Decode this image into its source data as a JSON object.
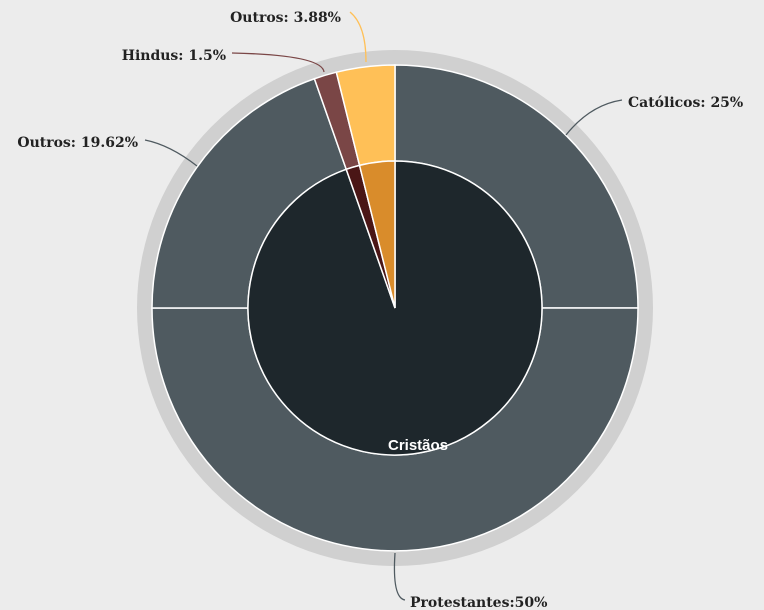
{
  "chart_data": {
    "type": "sunburst",
    "outer": {
      "values": [
        25,
        50,
        19.62,
        1.5,
        3.88
      ],
      "value_labels": [
        "Católicos: 25%",
        "Protestantes:50%",
        "Outros: 19.62%",
        "Hindus: 1.5%",
        "Outros: 3.88%"
      ],
      "colors": [
        "#4f5a60",
        "#4f5a60",
        "#4f5a60",
        "#7a4646",
        "#ffc057"
      ]
    },
    "inner": {
      "categories": [
        "Cristãos",
        null,
        null
      ],
      "values": [
        94.62,
        1.5,
        3.88
      ],
      "colors": [
        "#1e272c",
        "#4a1616",
        "#d98c2b"
      ]
    }
  }
}
